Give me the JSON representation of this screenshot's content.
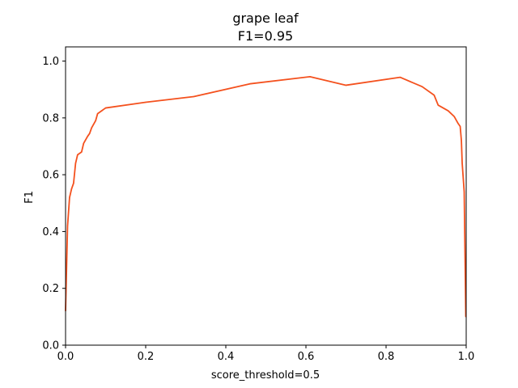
{
  "chart_data": {
    "type": "line",
    "title": "grape leaf",
    "subtitle": "F1=0.95",
    "xlabel": "score_threshold=0.5",
    "ylabel": "F1",
    "xlim": [
      0.0,
      1.0
    ],
    "ylim": [
      0.0,
      1.05
    ],
    "xticks": [
      "0.0",
      "0.2",
      "0.4",
      "0.6",
      "0.8",
      "1.0"
    ],
    "yticks": [
      "0.0",
      "0.2",
      "0.4",
      "0.6",
      "0.8",
      "1.0"
    ],
    "grid": false,
    "legend": "none",
    "series": [
      {
        "color": "#f4511e",
        "x": [
          0.0,
          0.003,
          0.005,
          0.008,
          0.01,
          0.015,
          0.02,
          0.025,
          0.03,
          0.04,
          0.045,
          0.055,
          0.06,
          0.065,
          0.075,
          0.08,
          0.1,
          0.2,
          0.32,
          0.46,
          0.61,
          0.7,
          0.835,
          0.89,
          0.92,
          0.93,
          0.955,
          0.97,
          0.98,
          0.985,
          0.988,
          0.99,
          0.995,
          0.999
        ],
        "y": [
          0.12,
          0.3,
          0.42,
          0.48,
          0.52,
          0.55,
          0.57,
          0.64,
          0.67,
          0.68,
          0.71,
          0.735,
          0.745,
          0.765,
          0.79,
          0.815,
          0.835,
          0.855,
          0.875,
          0.92,
          0.945,
          0.915,
          0.943,
          0.91,
          0.88,
          0.845,
          0.825,
          0.805,
          0.78,
          0.77,
          0.72,
          0.64,
          0.54,
          0.1
        ]
      }
    ]
  }
}
